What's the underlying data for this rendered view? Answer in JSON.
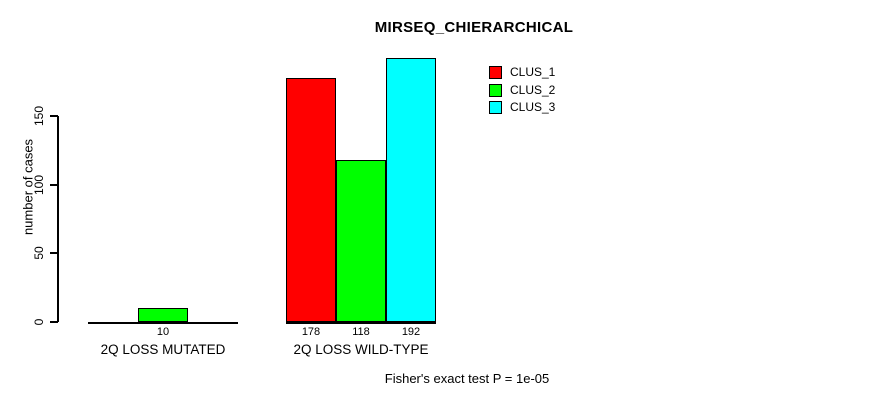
{
  "chart_data": {
    "type": "bar",
    "title": "MIRSEQ_CHIERARCHICAL",
    "ylabel": "number of cases",
    "xlabel": "",
    "caption": "Fisher's exact test P = 1e-05",
    "ylim": [
      0,
      150
    ],
    "yticks": [
      0,
      50,
      100,
      150
    ],
    "grid": false,
    "legend_position": "top-right-inside",
    "background": "#ffffff",
    "axis_color": "#000000",
    "text_color": "#000000",
    "series": [
      {
        "name": "CLUS_1",
        "color": "#ff0000"
      },
      {
        "name": "CLUS_2",
        "color": "#00ff00"
      },
      {
        "name": "CLUS_3",
        "color": "#00ffff"
      }
    ],
    "groups": [
      {
        "label": "2Q LOSS MUTATED",
        "values": [
          0,
          10,
          0
        ]
      },
      {
        "label": "2Q LOSS WILD-TYPE",
        "values": [
          178,
          118,
          192
        ]
      }
    ]
  }
}
